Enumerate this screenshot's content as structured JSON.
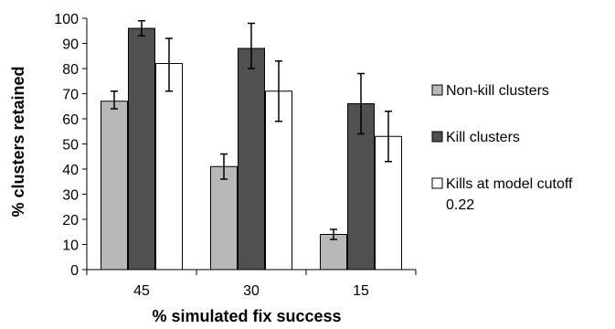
{
  "chart_data": {
    "type": "bar",
    "title": "",
    "xlabel": "% simulated fix success",
    "ylabel": "% clusters retained",
    "categories": [
      "45",
      "30",
      "15"
    ],
    "ylim": [
      0,
      100
    ],
    "yticks": [
      0,
      10,
      20,
      30,
      40,
      50,
      60,
      70,
      80,
      90,
      100
    ],
    "grid": false,
    "legend_position": "right",
    "series": [
      {
        "name": "Non-kill clusters",
        "color": "#b8b8b8",
        "values": [
          67,
          41,
          14
        ],
        "error_low": [
          64,
          36,
          12
        ],
        "error_high": [
          71,
          46,
          16
        ]
      },
      {
        "name": "Kill clusters",
        "color": "#505050",
        "values": [
          96,
          88,
          66
        ],
        "error_low": [
          93,
          80,
          54
        ],
        "error_high": [
          99,
          98,
          78
        ]
      },
      {
        "name": "Kills at model cutoff 0.22",
        "name_lines": [
          "Kills at model cutoff",
          "0.22"
        ],
        "color": "#ffffff",
        "values": [
          82,
          71,
          53
        ],
        "error_low": [
          71,
          59,
          43
        ],
        "error_high": [
          92,
          83,
          63
        ]
      }
    ]
  }
}
